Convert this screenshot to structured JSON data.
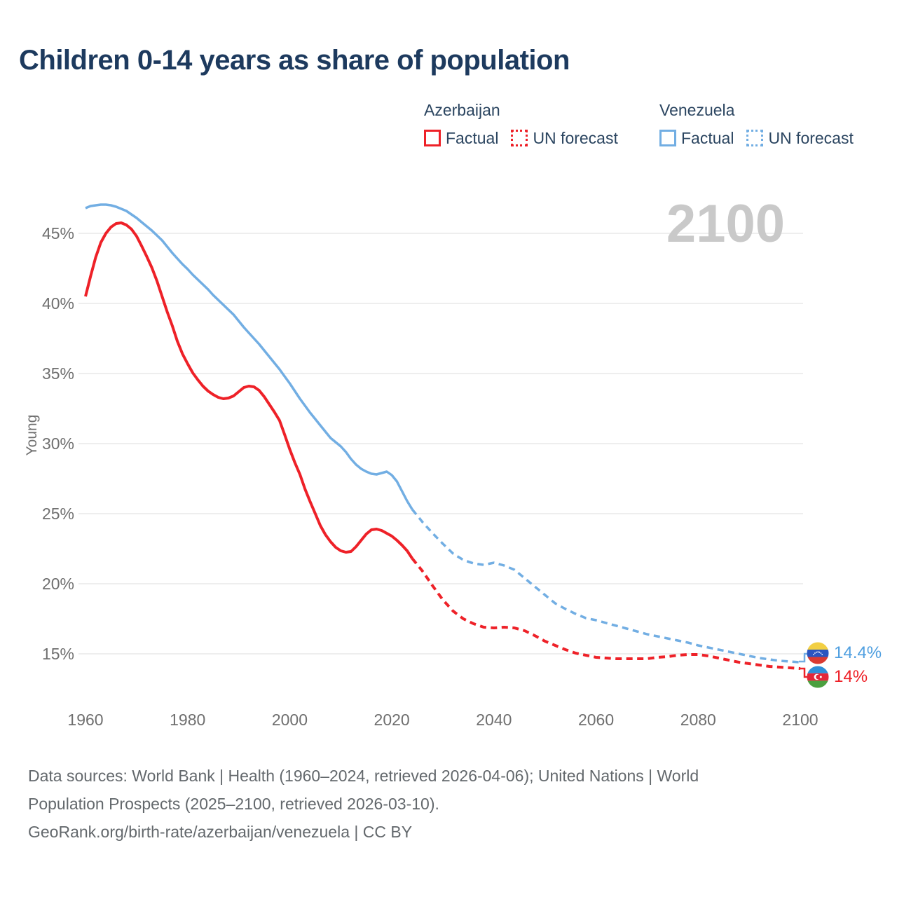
{
  "title": "Children 0-14 years as share of population",
  "watermark": "2100",
  "colors": {
    "azerbaijan": "#ee2128",
    "venezuela": "#72aee3",
    "title_text": "#1d3a5e",
    "axis_text": "#6f6f6f",
    "gridline": "#e8e8e8",
    "watermark_text": "#c9c9c9",
    "footer_text": "#63686c"
  },
  "legend": {
    "groups": [
      {
        "title": "Azerbaijan",
        "color": "#ee2128",
        "items": [
          {
            "label": "Factual",
            "style": "solid"
          },
          {
            "label": "UN forecast",
            "style": "dotted"
          }
        ]
      },
      {
        "title": "Venezuela",
        "color": "#72aee3",
        "items": [
          {
            "label": "Factual",
            "style": "solid"
          },
          {
            "label": "UN forecast",
            "style": "dotted"
          }
        ]
      }
    ]
  },
  "y_axis": {
    "label": "Young",
    "ticks": [
      {
        "label": "45%",
        "value": 45
      },
      {
        "label": "40%",
        "value": 40
      },
      {
        "label": "35%",
        "value": 35
      },
      {
        "label": "30%",
        "value": 30
      },
      {
        "label": "25%",
        "value": 25
      },
      {
        "label": "20%",
        "value": 20
      },
      {
        "label": "15%",
        "value": 15
      }
    ]
  },
  "x_axis": {
    "ticks": [
      {
        "label": "1960",
        "value": 1960
      },
      {
        "label": "1980",
        "value": 1980
      },
      {
        "label": "2000",
        "value": 2000
      },
      {
        "label": "2020",
        "value": 2020
      },
      {
        "label": "2040",
        "value": 2040
      },
      {
        "label": "2060",
        "value": 2060
      },
      {
        "label": "2080",
        "value": 2080
      },
      {
        "label": "2100",
        "value": 2100
      }
    ]
  },
  "end_labels": [
    {
      "country": "Venezuela",
      "flag": "venezuela-flag",
      "value": "14.4%",
      "color": "#4f9fe0"
    },
    {
      "country": "Azerbaijan",
      "flag": "azerbaijan-flag",
      "value": "14%",
      "color": "#ee2128"
    }
  ],
  "footer": {
    "lines": [
      "Data sources: World Bank | Health (1960–2024, retrieved 2026-04-06); United Nations | World",
      "Population Prospects (2025–2100, retrieved 2026-03-10).",
      "GeoRank.org/birth-rate/azerbaijan/venezuela | CC BY"
    ]
  },
  "chart_data": {
    "type": "line",
    "title": "Children 0-14 years as share of population",
    "xlabel": "",
    "ylabel": "Young",
    "unit": "%",
    "x_range": [
      1960,
      2100
    ],
    "ylim": [
      13,
      48
    ],
    "y_ticks_pct": [
      15,
      20,
      25,
      30,
      35,
      40,
      45
    ],
    "grid": "horizontal",
    "legend_position": "top-right",
    "series": [
      {
        "id": "venezuela-factual",
        "name": "Venezuela Factual",
        "color": "#72aee3",
        "style": "solid",
        "width": 3.5,
        "points": [
          [
            1960,
            46.8
          ],
          [
            1961,
            46.95
          ],
          [
            1962,
            47.0
          ],
          [
            1963,
            47.05
          ],
          [
            1964,
            47.05
          ],
          [
            1965,
            47.0
          ],
          [
            1966,
            46.9
          ],
          [
            1967,
            46.75
          ],
          [
            1968,
            46.6
          ],
          [
            1969,
            46.35
          ],
          [
            1970,
            46.1
          ],
          [
            1971,
            45.8
          ],
          [
            1972,
            45.5
          ],
          [
            1973,
            45.2
          ],
          [
            1974,
            44.85
          ],
          [
            1975,
            44.5
          ],
          [
            1976,
            44.05
          ],
          [
            1977,
            43.6
          ],
          [
            1978,
            43.2
          ],
          [
            1979,
            42.8
          ],
          [
            1980,
            42.45
          ],
          [
            1981,
            42.05
          ],
          [
            1982,
            41.7
          ],
          [
            1983,
            41.35
          ],
          [
            1984,
            41.0
          ],
          [
            1985,
            40.6
          ],
          [
            1986,
            40.25
          ],
          [
            1987,
            39.9
          ],
          [
            1988,
            39.55
          ],
          [
            1989,
            39.2
          ],
          [
            1990,
            38.75
          ],
          [
            1991,
            38.3
          ],
          [
            1992,
            37.9
          ],
          [
            1993,
            37.5
          ],
          [
            1994,
            37.1
          ],
          [
            1995,
            36.65
          ],
          [
            1996,
            36.2
          ],
          [
            1997,
            35.75
          ],
          [
            1998,
            35.3
          ],
          [
            1999,
            34.8
          ],
          [
            2000,
            34.3
          ],
          [
            2001,
            33.75
          ],
          [
            2002,
            33.2
          ],
          [
            2003,
            32.7
          ],
          [
            2004,
            32.2
          ],
          [
            2005,
            31.75
          ],
          [
            2006,
            31.3
          ],
          [
            2007,
            30.85
          ],
          [
            2008,
            30.4
          ],
          [
            2009,
            30.1
          ],
          [
            2010,
            29.8
          ],
          [
            2011,
            29.4
          ],
          [
            2012,
            28.9
          ],
          [
            2013,
            28.5
          ],
          [
            2014,
            28.2
          ],
          [
            2015,
            28.0
          ],
          [
            2016,
            27.85
          ],
          [
            2017,
            27.8
          ],
          [
            2018,
            27.9
          ],
          [
            2019,
            28.0
          ],
          [
            2020,
            27.75
          ],
          [
            2021,
            27.3
          ],
          [
            2022,
            26.6
          ],
          [
            2023,
            25.9
          ],
          [
            2024,
            25.3
          ]
        ]
      },
      {
        "id": "venezuela-forecast",
        "name": "Venezuela UN forecast",
        "color": "#72aee3",
        "style": "dashed",
        "width": 3.5,
        "points": [
          [
            2024,
            25.3
          ],
          [
            2026,
            24.4
          ],
          [
            2028,
            23.6
          ],
          [
            2030,
            22.85
          ],
          [
            2032,
            22.15
          ],
          [
            2034,
            21.7
          ],
          [
            2036,
            21.45
          ],
          [
            2038,
            21.35
          ],
          [
            2040,
            21.5
          ],
          [
            2042,
            21.3
          ],
          [
            2044,
            21.0
          ],
          [
            2046,
            20.4
          ],
          [
            2048,
            19.8
          ],
          [
            2050,
            19.2
          ],
          [
            2052,
            18.6
          ],
          [
            2054,
            18.2
          ],
          [
            2056,
            17.85
          ],
          [
            2058,
            17.55
          ],
          [
            2060,
            17.4
          ],
          [
            2062,
            17.2
          ],
          [
            2064,
            17.0
          ],
          [
            2066,
            16.8
          ],
          [
            2068,
            16.6
          ],
          [
            2070,
            16.4
          ],
          [
            2072,
            16.25
          ],
          [
            2074,
            16.1
          ],
          [
            2076,
            15.95
          ],
          [
            2078,
            15.8
          ],
          [
            2080,
            15.6
          ],
          [
            2082,
            15.45
          ],
          [
            2084,
            15.3
          ],
          [
            2086,
            15.15
          ],
          [
            2088,
            15.0
          ],
          [
            2090,
            14.85
          ],
          [
            2092,
            14.7
          ],
          [
            2094,
            14.6
          ],
          [
            2096,
            14.5
          ],
          [
            2098,
            14.45
          ],
          [
            2100,
            14.4
          ]
        ]
      },
      {
        "id": "azerbaijan-factual",
        "name": "Azerbaijan Factual",
        "color": "#ee2128",
        "style": "solid",
        "width": 4,
        "points": [
          [
            1960,
            40.5
          ],
          [
            1961,
            41.95
          ],
          [
            1962,
            43.3
          ],
          [
            1963,
            44.35
          ],
          [
            1964,
            45.0
          ],
          [
            1965,
            45.45
          ],
          [
            1966,
            45.7
          ],
          [
            1967,
            45.75
          ],
          [
            1968,
            45.6
          ],
          [
            1969,
            45.3
          ],
          [
            1970,
            44.8
          ],
          [
            1971,
            44.1
          ],
          [
            1972,
            43.35
          ],
          [
            1973,
            42.55
          ],
          [
            1974,
            41.6
          ],
          [
            1975,
            40.5
          ],
          [
            1976,
            39.4
          ],
          [
            1977,
            38.4
          ],
          [
            1978,
            37.3
          ],
          [
            1979,
            36.4
          ],
          [
            1980,
            35.7
          ],
          [
            1981,
            35.05
          ],
          [
            1982,
            34.55
          ],
          [
            1983,
            34.1
          ],
          [
            1984,
            33.75
          ],
          [
            1985,
            33.5
          ],
          [
            1986,
            33.3
          ],
          [
            1987,
            33.2
          ],
          [
            1988,
            33.25
          ],
          [
            1989,
            33.4
          ],
          [
            1990,
            33.7
          ],
          [
            1991,
            34.0
          ],
          [
            1992,
            34.1
          ],
          [
            1993,
            34.05
          ],
          [
            1994,
            33.8
          ],
          [
            1995,
            33.35
          ],
          [
            1996,
            32.8
          ],
          [
            1997,
            32.25
          ],
          [
            1998,
            31.65
          ],
          [
            1999,
            30.65
          ],
          [
            2000,
            29.6
          ],
          [
            2001,
            28.65
          ],
          [
            2002,
            27.8
          ],
          [
            2003,
            26.75
          ],
          [
            2004,
            25.85
          ],
          [
            2005,
            25.0
          ],
          [
            2006,
            24.15
          ],
          [
            2007,
            23.5
          ],
          [
            2008,
            23.0
          ],
          [
            2009,
            22.6
          ],
          [
            2010,
            22.35
          ],
          [
            2011,
            22.25
          ],
          [
            2012,
            22.3
          ],
          [
            2013,
            22.65
          ],
          [
            2014,
            23.1
          ],
          [
            2015,
            23.55
          ],
          [
            2016,
            23.85
          ],
          [
            2017,
            23.9
          ],
          [
            2018,
            23.8
          ],
          [
            2019,
            23.6
          ],
          [
            2020,
            23.4
          ],
          [
            2021,
            23.1
          ],
          [
            2022,
            22.75
          ],
          [
            2023,
            22.35
          ],
          [
            2024,
            21.8
          ]
        ]
      },
      {
        "id": "azerbaijan-forecast",
        "name": "Azerbaijan UN forecast",
        "color": "#ee2128",
        "style": "dashed",
        "width": 4,
        "points": [
          [
            2024,
            21.8
          ],
          [
            2026,
            20.9
          ],
          [
            2028,
            19.85
          ],
          [
            2030,
            18.85
          ],
          [
            2032,
            18.05
          ],
          [
            2034,
            17.5
          ],
          [
            2036,
            17.15
          ],
          [
            2038,
            16.9
          ],
          [
            2040,
            16.85
          ],
          [
            2042,
            16.9
          ],
          [
            2044,
            16.85
          ],
          [
            2046,
            16.65
          ],
          [
            2048,
            16.3
          ],
          [
            2050,
            15.9
          ],
          [
            2052,
            15.6
          ],
          [
            2054,
            15.3
          ],
          [
            2056,
            15.05
          ],
          [
            2058,
            14.9
          ],
          [
            2060,
            14.75
          ],
          [
            2062,
            14.7
          ],
          [
            2064,
            14.65
          ],
          [
            2066,
            14.65
          ],
          [
            2068,
            14.65
          ],
          [
            2070,
            14.65
          ],
          [
            2072,
            14.75
          ],
          [
            2074,
            14.8
          ],
          [
            2076,
            14.9
          ],
          [
            2078,
            14.95
          ],
          [
            2080,
            14.95
          ],
          [
            2082,
            14.85
          ],
          [
            2084,
            14.7
          ],
          [
            2086,
            14.55
          ],
          [
            2088,
            14.4
          ],
          [
            2090,
            14.3
          ],
          [
            2092,
            14.2
          ],
          [
            2094,
            14.1
          ],
          [
            2096,
            14.05
          ],
          [
            2098,
            14.0
          ],
          [
            2100,
            13.95
          ]
        ]
      }
    ]
  }
}
